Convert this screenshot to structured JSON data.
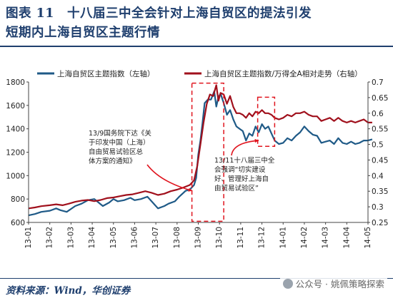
{
  "header": {
    "title_line1": "图表 11　十八届三中全会针对上海自贸区的提法引发",
    "title_line2": "短期内上海自贸区主题行情"
  },
  "footer": {
    "source": "资料来源：Wind，华创证券",
    "watermark": "公众号 · 姚佩策略探索"
  },
  "chart_data": {
    "type": "line",
    "x": [
      "13-01",
      "13-02",
      "13-03",
      "13-04",
      "13-05",
      "13-06",
      "13-07",
      "13-08",
      "13-09",
      "13-10",
      "13-11",
      "13-12",
      "14-01",
      "14-02",
      "14-03",
      "14-04",
      "14-05"
    ],
    "left_axis": {
      "ylim": [
        600,
        1800
      ],
      "ticks": [
        600,
        800,
        1000,
        1200,
        1400,
        1600,
        1800
      ]
    },
    "right_axis": {
      "ylim": [
        0.25,
        0.7
      ],
      "ticks": [
        0.25,
        0.3,
        0.35,
        0.4,
        0.45,
        0.5,
        0.55,
        0.6,
        0.65,
        0.7
      ]
    },
    "series": [
      {
        "name": "上海自贸区主题指数（左轴）",
        "axis": "left",
        "color": "#1f5a87",
        "values": [
          [
            0.0,
            660
          ],
          [
            0.3,
            672
          ],
          [
            0.6,
            690
          ],
          [
            1.0,
            700
          ],
          [
            1.3,
            720
          ],
          [
            1.5,
            705
          ],
          [
            1.8,
            690
          ],
          [
            2.2,
            740
          ],
          [
            2.5,
            760
          ],
          [
            2.8,
            790
          ],
          [
            3.1,
            800
          ],
          [
            3.3,
            770
          ],
          [
            3.5,
            740
          ],
          [
            3.8,
            770
          ],
          [
            4.0,
            800
          ],
          [
            4.2,
            780
          ],
          [
            4.5,
            790
          ],
          [
            4.8,
            810
          ],
          [
            5.0,
            790
          ],
          [
            5.3,
            800
          ],
          [
            5.6,
            820
          ],
          [
            5.9,
            760
          ],
          [
            6.1,
            720
          ],
          [
            6.4,
            740
          ],
          [
            6.6,
            760
          ],
          [
            6.9,
            780
          ],
          [
            7.1,
            820
          ],
          [
            7.4,
            870
          ],
          [
            7.6,
            880
          ],
          [
            7.8,
            920
          ],
          [
            7.9,
            980
          ],
          [
            8.0,
            1180
          ],
          [
            8.1,
            1300
          ],
          [
            8.2,
            1450
          ],
          [
            8.3,
            1620
          ],
          [
            8.45,
            1650
          ],
          [
            8.6,
            1650
          ],
          [
            8.75,
            1720
          ],
          [
            8.85,
            1590
          ],
          [
            8.95,
            1670
          ],
          [
            9.05,
            1700
          ],
          [
            9.2,
            1620
          ],
          [
            9.35,
            1520
          ],
          [
            9.5,
            1560
          ],
          [
            9.65,
            1480
          ],
          [
            9.8,
            1420
          ],
          [
            9.95,
            1400
          ],
          [
            10.1,
            1380
          ],
          [
            10.25,
            1300
          ],
          [
            10.4,
            1360
          ],
          [
            10.55,
            1340
          ],
          [
            10.7,
            1420
          ],
          [
            10.85,
            1370
          ],
          [
            11.0,
            1440
          ],
          [
            11.15,
            1400
          ],
          [
            11.3,
            1420
          ],
          [
            11.45,
            1360
          ],
          [
            11.6,
            1300
          ],
          [
            11.8,
            1270
          ],
          [
            12.0,
            1280
          ],
          [
            12.2,
            1320
          ],
          [
            12.4,
            1300
          ],
          [
            12.6,
            1340
          ],
          [
            12.8,
            1370
          ],
          [
            13.0,
            1420
          ],
          [
            13.2,
            1380
          ],
          [
            13.4,
            1350
          ],
          [
            13.6,
            1340
          ],
          [
            13.8,
            1280
          ],
          [
            14.0,
            1290
          ],
          [
            14.2,
            1300
          ],
          [
            14.4,
            1270
          ],
          [
            14.6,
            1320
          ],
          [
            14.8,
            1280
          ],
          [
            15.0,
            1270
          ],
          [
            15.2,
            1290
          ],
          [
            15.4,
            1270
          ],
          [
            15.6,
            1280
          ],
          [
            15.8,
            1300
          ],
          [
            16.0,
            1300
          ],
          [
            16.2,
            1310
          ]
        ]
      },
      {
        "name": "上海自贸区主题指数/万得全A相对走势（右轴）",
        "axis": "right",
        "color": "#a0101c",
        "values": [
          [
            0.0,
            0.295
          ],
          [
            0.3,
            0.298
          ],
          [
            0.6,
            0.302
          ],
          [
            1.0,
            0.305
          ],
          [
            1.3,
            0.308
          ],
          [
            1.6,
            0.305
          ],
          [
            1.9,
            0.31
          ],
          [
            2.2,
            0.316
          ],
          [
            2.5,
            0.32
          ],
          [
            2.8,
            0.322
          ],
          [
            3.1,
            0.318
          ],
          [
            3.4,
            0.322
          ],
          [
            3.7,
            0.328
          ],
          [
            4.0,
            0.33
          ],
          [
            4.3,
            0.334
          ],
          [
            4.6,
            0.338
          ],
          [
            4.9,
            0.34
          ],
          [
            5.2,
            0.345
          ],
          [
            5.5,
            0.35
          ],
          [
            5.8,
            0.345
          ],
          [
            6.1,
            0.338
          ],
          [
            6.4,
            0.342
          ],
          [
            6.7,
            0.35
          ],
          [
            7.0,
            0.355
          ],
          [
            7.3,
            0.362
          ],
          [
            7.6,
            0.37
          ],
          [
            7.8,
            0.385
          ],
          [
            7.95,
            0.43
          ],
          [
            8.1,
            0.5
          ],
          [
            8.25,
            0.57
          ],
          [
            8.4,
            0.63
          ],
          [
            8.55,
            0.66
          ],
          [
            8.7,
            0.655
          ],
          [
            8.85,
            0.69
          ],
          [
            8.95,
            0.64
          ],
          [
            9.05,
            0.665
          ],
          [
            9.2,
            0.66
          ],
          [
            9.35,
            0.63
          ],
          [
            9.5,
            0.655
          ],
          [
            9.65,
            0.62
          ],
          [
            9.8,
            0.6
          ],
          [
            9.95,
            0.6
          ],
          [
            10.1,
            0.595
          ],
          [
            10.25,
            0.585
          ],
          [
            10.4,
            0.6
          ],
          [
            10.55,
            0.59
          ],
          [
            10.7,
            0.605
          ],
          [
            10.85,
            0.6
          ],
          [
            11.0,
            0.61
          ],
          [
            11.15,
            0.6
          ],
          [
            11.3,
            0.6
          ],
          [
            11.45,
            0.595
          ],
          [
            11.6,
            0.585
          ],
          [
            11.8,
            0.58
          ],
          [
            12.0,
            0.585
          ],
          [
            12.2,
            0.595
          ],
          [
            12.4,
            0.59
          ],
          [
            12.6,
            0.6
          ],
          [
            12.8,
            0.6
          ],
          [
            13.0,
            0.605
          ],
          [
            13.2,
            0.595
          ],
          [
            13.4,
            0.59
          ],
          [
            13.6,
            0.59
          ],
          [
            13.8,
            0.575
          ],
          [
            14.0,
            0.58
          ],
          [
            14.2,
            0.585
          ],
          [
            14.4,
            0.575
          ],
          [
            14.6,
            0.585
          ],
          [
            14.8,
            0.575
          ],
          [
            15.0,
            0.57
          ],
          [
            15.2,
            0.575
          ],
          [
            15.4,
            0.57
          ],
          [
            15.6,
            0.575
          ],
          [
            15.8,
            0.58
          ],
          [
            16.0,
            0.57
          ],
          [
            16.2,
            0.57
          ]
        ]
      }
    ],
    "highlight_boxes": [
      {
        "x0": 7.7,
        "x1": 9.2,
        "y0_left": 610,
        "y1_left": 1790
      },
      {
        "x0": 10.8,
        "x1": 11.6,
        "y0_left": 1250,
        "y1_left": 1670
      }
    ],
    "annotations": [
      {
        "lines": [
          "13/9国务院下达《关",
          "于印发中国（上海）",
          "自由贸易试验区总",
          "体方案的通知》"
        ],
        "arrow_to": [
          7.72,
          870
        ]
      },
      {
        "lines": [
          "13/11十八届三中全",
          "会强调“切实建设",
          "好、管理好上海自",
          "由贸易试验区”"
        ],
        "arrow_to": [
          10.85,
          1300
        ]
      }
    ]
  }
}
